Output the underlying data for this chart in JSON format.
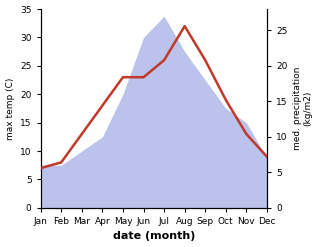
{
  "months": [
    "Jan",
    "Feb",
    "Mar",
    "Apr",
    "May",
    "Jun",
    "Jul",
    "Aug",
    "Sep",
    "Oct",
    "Nov",
    "Dec"
  ],
  "temperature": [
    7,
    8,
    13,
    18,
    23,
    23,
    26,
    32,
    26,
    19,
    13,
    9
  ],
  "precipitation": [
    6,
    6,
    8,
    10,
    16,
    24,
    27,
    22,
    18,
    14,
    12,
    7
  ],
  "temp_color": "#c0392b",
  "precip_color": "#b0b8e8",
  "ylim_left": [
    0,
    35
  ],
  "ylim_right": [
    0,
    28
  ],
  "yticks_left": [
    0,
    5,
    10,
    15,
    20,
    25,
    30,
    35
  ],
  "yticks_right": [
    0,
    5,
    10,
    15,
    20,
    25
  ],
  "xlabel": "date (month)",
  "ylabel_left": "max temp (C)",
  "ylabel_right": "med. precipitation\n(kg/m2)",
  "temp_linewidth": 1.8,
  "bg_color": "#ffffff"
}
